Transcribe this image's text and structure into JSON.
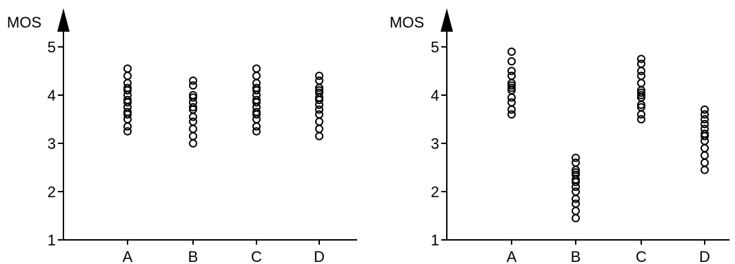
{
  "chart_data": [
    {
      "type": "scatter",
      "ylabel": "MOS",
      "xlabel": "",
      "title": "",
      "ylim": [
        1,
        5
      ],
      "yticks": [
        "1",
        "2",
        "3",
        "4",
        "5"
      ],
      "categories": [
        "A",
        "B",
        "C",
        "D"
      ],
      "grid": false,
      "point_marker": "open-circle",
      "series": [
        {
          "category": "A",
          "values": [
            3.25,
            3.35,
            3.5,
            3.6,
            3.65,
            3.75,
            3.85,
            3.9,
            4.0,
            4.1,
            4.15,
            4.25,
            4.4,
            4.55
          ]
        },
        {
          "category": "B",
          "values": [
            3.0,
            3.15,
            3.3,
            3.45,
            3.55,
            3.7,
            3.75,
            3.85,
            3.95,
            4.0,
            4.2,
            4.3
          ]
        },
        {
          "category": "C",
          "values": [
            3.25,
            3.35,
            3.5,
            3.6,
            3.65,
            3.75,
            3.85,
            3.9,
            4.0,
            4.1,
            4.15,
            4.25,
            4.4,
            4.55
          ]
        },
        {
          "category": "D",
          "values": [
            3.15,
            3.3,
            3.45,
            3.6,
            3.7,
            3.8,
            3.9,
            3.95,
            4.05,
            4.1,
            4.15,
            4.3,
            4.4
          ]
        }
      ]
    },
    {
      "type": "scatter",
      "ylabel": "MOS",
      "xlabel": "",
      "title": "",
      "ylim": [
        1,
        5
      ],
      "yticks": [
        "1",
        "2",
        "3",
        "4",
        "5"
      ],
      "categories": [
        "A",
        "B",
        "C",
        "D"
      ],
      "grid": false,
      "point_marker": "open-circle",
      "series": [
        {
          "category": "A",
          "values": [
            3.6,
            3.7,
            3.85,
            3.95,
            4.1,
            4.15,
            4.2,
            4.25,
            4.4,
            4.5,
            4.7,
            4.9
          ]
        },
        {
          "category": "B",
          "values": [
            1.45,
            1.6,
            1.75,
            1.85,
            2.0,
            2.1,
            2.2,
            2.25,
            2.35,
            2.4,
            2.45,
            2.6,
            2.7
          ]
        },
        {
          "category": "C",
          "values": [
            3.5,
            3.6,
            3.75,
            3.8,
            3.95,
            4.0,
            4.05,
            4.1,
            4.25,
            4.4,
            4.5,
            4.65,
            4.75
          ]
        },
        {
          "category": "D",
          "values": [
            2.45,
            2.6,
            2.75,
            2.9,
            3.05,
            3.15,
            3.2,
            3.3,
            3.4,
            3.5,
            3.6,
            3.7
          ]
        }
      ]
    }
  ]
}
